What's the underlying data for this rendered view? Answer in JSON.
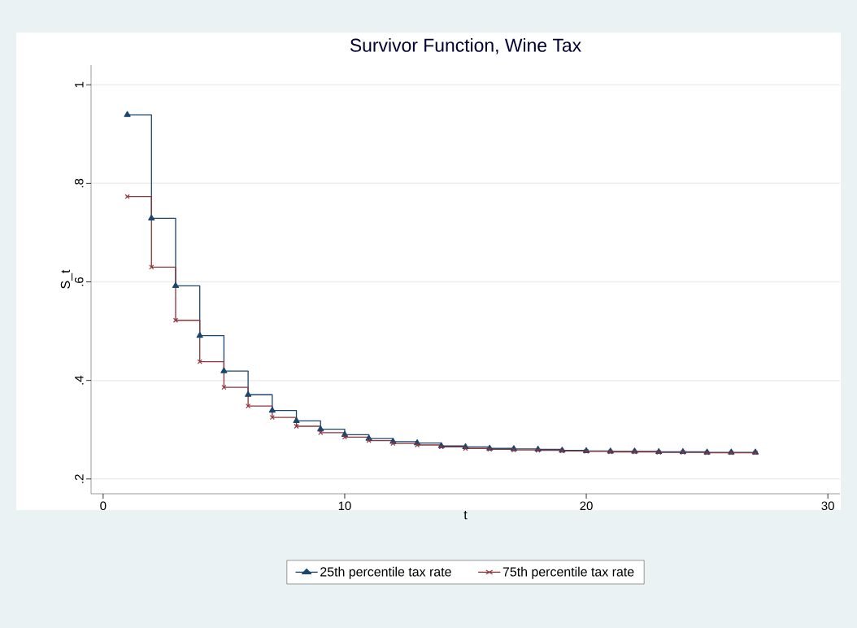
{
  "chart_data": {
    "type": "step",
    "title": "Survivor Function, Wine Tax",
    "xlabel": "t",
    "ylabel": "S_t",
    "x": [
      1,
      2,
      3,
      4,
      5,
      6,
      7,
      8,
      9,
      10,
      11,
      12,
      13,
      14,
      15,
      16,
      17,
      18,
      19,
      20,
      21,
      22,
      23,
      24,
      25,
      26,
      27
    ],
    "series": [
      {
        "name": "25th percentile tax rate",
        "color": "#1a476f",
        "marker": "triangle",
        "values": [
          0.939,
          0.729,
          0.592,
          0.491,
          0.419,
          0.371,
          0.339,
          0.318,
          0.301,
          0.29,
          0.282,
          0.276,
          0.273,
          0.267,
          0.265,
          0.262,
          0.261,
          0.26,
          0.258,
          0.257,
          0.256,
          0.256,
          0.255,
          0.255,
          0.254,
          0.254,
          0.254
        ]
      },
      {
        "name": "75th percentile tax rate",
        "color": "#90353b",
        "marker": "cross",
        "values": [
          0.773,
          0.63,
          0.522,
          0.438,
          0.386,
          0.348,
          0.325,
          0.307,
          0.294,
          0.285,
          0.278,
          0.272,
          0.269,
          0.265,
          0.262,
          0.26,
          0.259,
          0.258,
          0.257,
          0.256,
          0.255,
          0.255,
          0.254,
          0.254,
          0.253,
          0.253,
          0.253
        ]
      }
    ],
    "xlim": [
      -0.5,
      30.5
    ],
    "ylim": [
      0.17,
      1.04
    ],
    "xticks": [
      0,
      10,
      20,
      30
    ],
    "yticks": [
      {
        "value": 0.2,
        "label": ".2"
      },
      {
        "value": 0.4,
        "label": ".4"
      },
      {
        "value": 0.6,
        "label": ".6"
      },
      {
        "value": 0.8,
        "label": ".8"
      },
      1
    ],
    "grid": "y",
    "legend": "bottom"
  }
}
